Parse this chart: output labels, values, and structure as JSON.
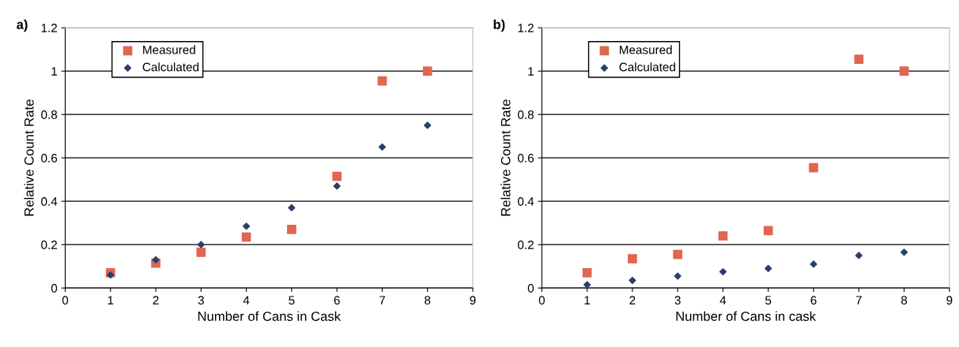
{
  "chart_data": [
    {
      "type": "scatter",
      "title": "a)",
      "xlabel": "Number of Cans in Cask",
      "ylabel": "Relative Count Rate",
      "x": [
        1,
        2,
        3,
        4,
        5,
        6,
        7,
        8
      ],
      "xlim": [
        0,
        9
      ],
      "xticks": [
        0,
        1,
        2,
        3,
        4,
        5,
        6,
        7,
        8,
        9
      ],
      "ylim": [
        0,
        1.2
      ],
      "yticks": [
        0,
        0.2,
        0.4,
        0.6,
        0.8,
        1,
        1.2
      ],
      "grid": "y",
      "legend": "top left",
      "series": [
        {
          "name": "Measured",
          "color": "#e06650",
          "marker": "square",
          "values": [
            0.07,
            0.115,
            0.165,
            0.235,
            0.27,
            0.515,
            0.955,
            1.0
          ]
        },
        {
          "name": "Calculated",
          "color": "#2b3f6b",
          "marker": "diamond",
          "values": [
            0.06,
            0.13,
            0.2,
            0.285,
            0.37,
            0.47,
            0.65,
            0.75
          ]
        }
      ]
    },
    {
      "type": "scatter",
      "title": "b)",
      "xlabel": "Number of Cans in cask",
      "ylabel": "Relative Count Rate",
      "x": [
        1,
        2,
        3,
        4,
        5,
        6,
        7,
        8
      ],
      "xlim": [
        0,
        9
      ],
      "xticks": [
        0,
        1,
        2,
        3,
        4,
        5,
        6,
        7,
        8,
        9
      ],
      "ylim": [
        0,
        1.2
      ],
      "yticks": [
        0,
        0.2,
        0.4,
        0.6,
        0.8,
        1,
        1.2
      ],
      "grid": "y",
      "legend": "top left",
      "series": [
        {
          "name": "Measured",
          "color": "#e06650",
          "marker": "square",
          "values": [
            0.07,
            0.135,
            0.155,
            0.24,
            0.265,
            0.555,
            1.055,
            1.0
          ]
        },
        {
          "name": "Calculated",
          "color": "#2b3f6b",
          "marker": "diamond",
          "values": [
            0.015,
            0.035,
            0.055,
            0.075,
            0.09,
            0.11,
            0.15,
            0.165
          ]
        }
      ]
    }
  ]
}
